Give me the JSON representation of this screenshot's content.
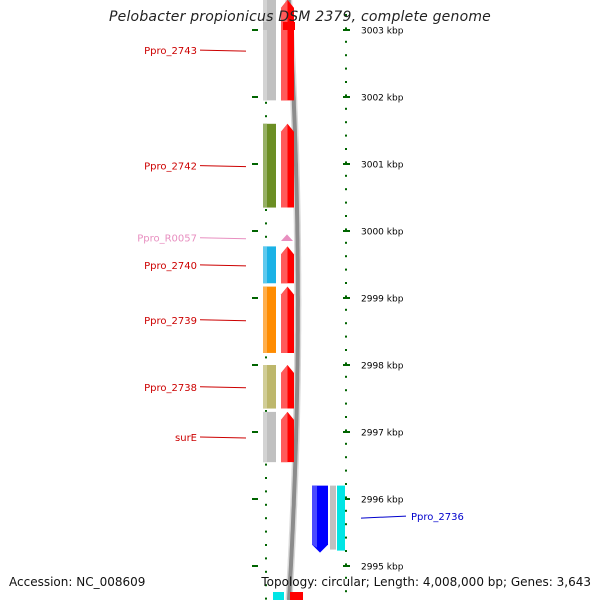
{
  "title": "Pelobacter propionicus DSM 2379, complete genome",
  "footer": {
    "accession": "Accession: NC_008609",
    "topology": "Topology: circular; Length: 4,008,000 bp; Genes: 3,643"
  },
  "colors": {
    "tick": "#006400",
    "cds_arrow": "#ff0000",
    "backbone": "#8c8c8c",
    "left_label": "#cc0000",
    "rna_label": "#e88fc0",
    "right_label": "#0000cc"
  },
  "scale": {
    "ticks": [
      {
        "label": "3003 kbp",
        "kbp": 3003
      },
      {
        "label": "3002 kbp",
        "kbp": 3002
      },
      {
        "label": "3001 kbp",
        "kbp": 3001
      },
      {
        "label": "3000 kbp",
        "kbp": 3000
      },
      {
        "label": "2999 kbp",
        "kbp": 2999
      },
      {
        "label": "2998 kbp",
        "kbp": 2998
      },
      {
        "label": "2997 kbp",
        "kbp": 2997
      },
      {
        "label": "2996 kbp",
        "kbp": 2996
      },
      {
        "label": "2995 kbp",
        "kbp": 2995
      }
    ]
  },
  "features": [
    {
      "name": "Ppro_2743",
      "start_kbp": 3003.45,
      "end_kbp": 3001.95,
      "strand": "forward",
      "cog_color": "#c0c0c0",
      "label_color": "#cc0000"
    },
    {
      "name": "Ppro_2742",
      "start_kbp": 3001.6,
      "end_kbp": 3000.35,
      "strand": "forward",
      "cog_color": "#6b8e23",
      "label_color": "#cc0000"
    },
    {
      "name": "Ppro_R0057",
      "start_kbp": 2999.92,
      "end_kbp": 2999.88,
      "strand": "forward",
      "cog_color": "",
      "label_color": "#e88fc0"
    },
    {
      "name": "Ppro_2740",
      "start_kbp": 2999.77,
      "end_kbp": 2999.22,
      "strand": "forward",
      "cog_color": "#1ab2e6",
      "label_color": "#cc0000"
    },
    {
      "name": "Ppro_2739",
      "start_kbp": 2999.17,
      "end_kbp": 2998.18,
      "strand": "forward",
      "cog_color": "#ff8c00",
      "label_color": "#cc0000"
    },
    {
      "name": "Ppro_2738",
      "start_kbp": 2998.0,
      "end_kbp": 2997.35,
      "strand": "forward",
      "cog_color": "#bdb76b",
      "label_color": "#cc0000"
    },
    {
      "name": "surE",
      "start_kbp": 2997.3,
      "end_kbp": 2996.55,
      "strand": "forward",
      "cog_color": "#c0c0c0",
      "label_color": "#cc0000"
    },
    {
      "name": "Ppro_2736",
      "start_kbp": 2996.2,
      "end_kbp": 2995.2,
      "strand": "reverse",
      "cog_color": "#0000ff",
      "label_color": "#0000cc"
    }
  ]
}
